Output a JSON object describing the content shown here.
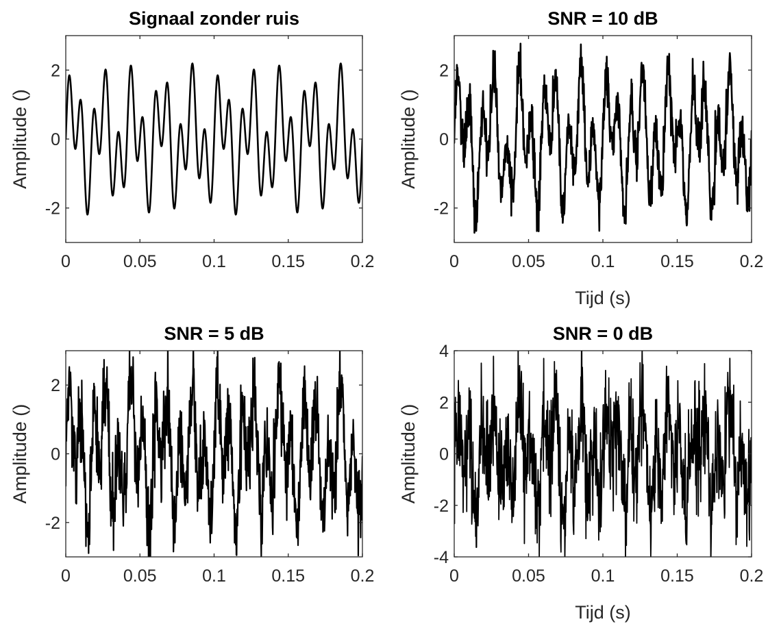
{
  "chart_data": [
    {
      "type": "line",
      "title": "Signaal zonder ruis",
      "xlabel": "",
      "ylabel": "Amplitude ()",
      "xlim": [
        0,
        0.2
      ],
      "ylim": [
        -3,
        3
      ],
      "xticks": [
        0,
        0.05,
        0.1,
        0.15,
        0.2
      ],
      "xtick_labels": [
        "0",
        "0.05",
        "0.1",
        "0.15",
        "0.2"
      ],
      "yticks": [
        -2,
        0,
        2
      ],
      "ytick_labels": [
        "-2",
        "0",
        "2"
      ],
      "grid": false,
      "signal_model": "sin(2*pi*50*t) + 1.2*sin(2*pi*120*t)",
      "noise_snr_db": null,
      "series": [
        {
          "x_step": 0.0002,
          "samples_from_model": true
        }
      ]
    },
    {
      "type": "line",
      "title": "SNR = 10 dB",
      "xlabel": "Tijd (s)",
      "ylabel": "Amplitude ()",
      "xlim": [
        0,
        0.2
      ],
      "ylim": [
        -3,
        3
      ],
      "xticks": [
        0,
        0.05,
        0.1,
        0.15,
        0.2
      ],
      "xtick_labels": [
        "0",
        "0.05",
        "0.1",
        "0.15",
        "0.2"
      ],
      "yticks": [
        -2,
        0,
        2
      ],
      "ytick_labels": [
        "-2",
        "0",
        "2"
      ],
      "grid": false,
      "signal_model": "sin(2*pi*50*t) + 1.2*sin(2*pi*120*t)",
      "noise_snr_db": 10,
      "series": [
        {
          "x_step": 0.0002,
          "samples_from_model": true
        }
      ]
    },
    {
      "type": "line",
      "title": "SNR = 5 dB",
      "xlabel": "",
      "ylabel": "Amplitude ()",
      "xlim": [
        0,
        0.2
      ],
      "ylim": [
        -3,
        3
      ],
      "xticks": [
        0,
        0.05,
        0.1,
        0.15,
        0.2
      ],
      "xtick_labels": [
        "0",
        "0.05",
        "0.1",
        "0.15",
        "0.2"
      ],
      "yticks": [
        -2,
        0,
        2
      ],
      "ytick_labels": [
        "-2",
        "0",
        "2"
      ],
      "grid": false,
      "signal_model": "sin(2*pi*50*t) + 1.2*sin(2*pi*120*t)",
      "noise_snr_db": 5,
      "series": [
        {
          "x_step": 0.0002,
          "samples_from_model": true
        }
      ]
    },
    {
      "type": "line",
      "title": "SNR = 0 dB",
      "xlabel": "Tijd (s)",
      "ylabel": "Amplitude ()",
      "xlim": [
        0,
        0.2
      ],
      "ylim": [
        -4,
        4
      ],
      "xticks": [
        0,
        0.05,
        0.1,
        0.15,
        0.2
      ],
      "xtick_labels": [
        "0",
        "0.05",
        "0.1",
        "0.15",
        "0.2"
      ],
      "yticks": [
        -4,
        -2,
        0,
        2,
        4
      ],
      "ytick_labels": [
        "-4",
        "-2",
        "0",
        "2",
        "4"
      ],
      "grid": false,
      "signal_model": "sin(2*pi*50*t) + 1.2*sin(2*pi*120*t)",
      "noise_snr_db": 0,
      "series": [
        {
          "x_step": 0.0002,
          "samples_from_model": true
        }
      ]
    }
  ],
  "style": {
    "line_color": "#000000",
    "axis_color": "#262626",
    "background": "#ffffff"
  }
}
